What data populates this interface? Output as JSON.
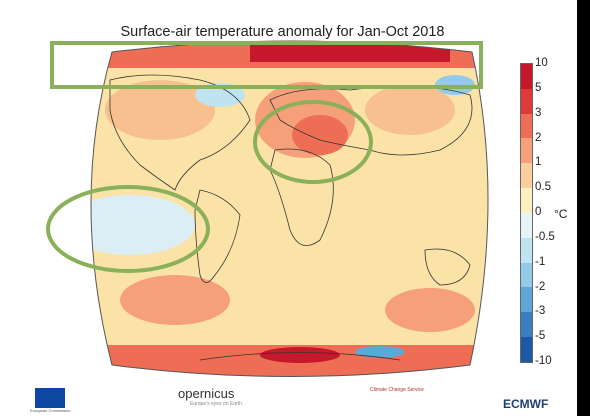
{
  "title": "Surface-air temperature anomaly for Jan-Oct 2018",
  "colorbar": {
    "unit": "°C",
    "ticks": [
      "10",
      "5",
      "3",
      "2",
      "1",
      "0.5",
      "0",
      "-0.5",
      "-1",
      "-2",
      "-3",
      "-5",
      "-10"
    ],
    "colors": [
      "#c5192b",
      "#de3a3a",
      "#ee6e55",
      "#f6a07a",
      "#fbcf9d",
      "#fdf0c0",
      "#e6f3f7",
      "#bfe3f0",
      "#93cae6",
      "#5fa7d6",
      "#3b7fc0",
      "#1c5aa5"
    ]
  },
  "highlight_color": "#8bb05a",
  "logos": {
    "copernicus": "opernicus",
    "copernicus_sub": "Europe's eyes on Earth",
    "c3s": "Climate Change Service",
    "ecmwf": "ECMWF",
    "eu": "European Commission"
  }
}
